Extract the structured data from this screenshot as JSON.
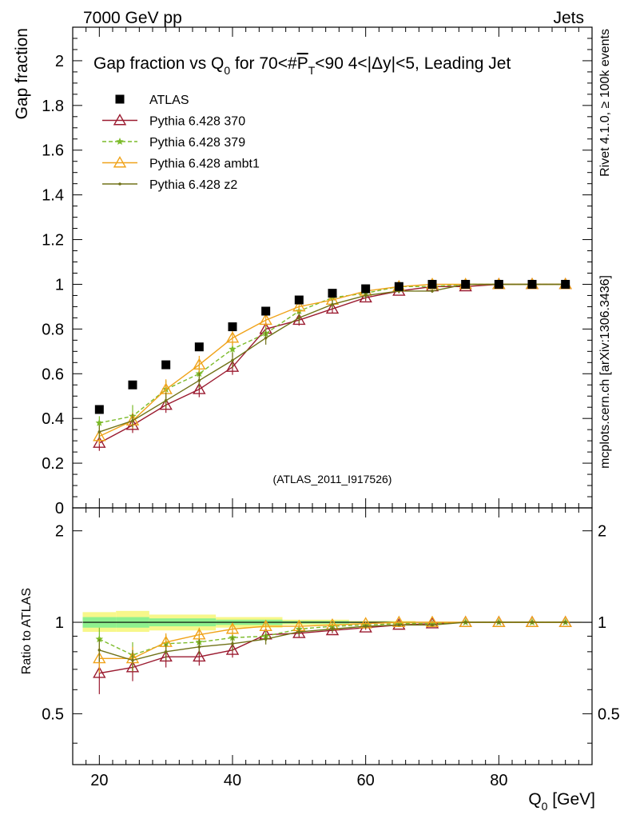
{
  "header": {
    "left_label": "7000 GeV pp",
    "right_label": "Jets"
  },
  "side_labels": {
    "rivet": "Rivet 4.1.0, ≥ 100k events",
    "source": "mcplots.cern.ch [arXiv:1306.3436]"
  },
  "colors": {
    "data": "#000000",
    "p370": "#9b1b30",
    "p379": "#7cbb2a",
    "ambt1": "#f0a31a",
    "z2": "#707218",
    "band_inner": "#8ef08e",
    "band_outer": "#f7f78a",
    "watermark": "#999999",
    "side_text": "#808080"
  },
  "chart_data": [
    {
      "type": "line",
      "panel": "main",
      "title_prefix": "Gap fraction vs Q",
      "title_sub": "0",
      "title_mid": " for 70<#",
      "title_overline": "P",
      "title_overline_sub": "T",
      "title_suffix": "<90  4<|Δy|<5, Leading Jet",
      "ylabel": "Gap fraction",
      "xlim": [
        16,
        94
      ],
      "ylim": [
        0,
        2.15
      ],
      "yticks": [
        0,
        0.2,
        0.4,
        0.6,
        0.8,
        1,
        1.2,
        1.4,
        1.6,
        1.8,
        2
      ],
      "ytick_labels": [
        "0",
        "0.2",
        "0.4",
        "0.6",
        "0.8",
        "1",
        "1.2",
        "1.4",
        "1.6",
        "1.8",
        "2"
      ],
      "watermark": "(ATLAS_2011_I917526)",
      "x": [
        20,
        25,
        30,
        35,
        40,
        45,
        50,
        55,
        60,
        65,
        70,
        75,
        80,
        85,
        90
      ],
      "series": [
        {
          "name": "ATLAS",
          "key": "data",
          "marker": "square",
          "line": "none",
          "values": [
            0.44,
            0.55,
            0.64,
            0.72,
            0.81,
            0.88,
            0.93,
            0.96,
            0.98,
            0.99,
            1.0,
            1.0,
            1.0,
            1.0,
            1.0
          ]
        },
        {
          "name": "Pythia 6.428 370",
          "key": "p370",
          "marker": "open-triangle",
          "line": "solid",
          "values": [
            0.29,
            0.37,
            0.46,
            0.53,
            0.63,
            0.8,
            0.84,
            0.89,
            0.94,
            0.97,
            0.99,
            0.99,
            1.0,
            1.0,
            1.0
          ],
          "errors": [
            0.035,
            0.035,
            0.035,
            0.035,
            0.035,
            0.03,
            0.025,
            0.02,
            0.015,
            0.01,
            0.008,
            0.005,
            0.003,
            0.002,
            0.002
          ]
        },
        {
          "name": "Pythia 6.428 379",
          "key": "p379",
          "marker": "star",
          "line": "dashed",
          "values": [
            0.38,
            0.41,
            0.53,
            0.6,
            0.71,
            0.78,
            0.88,
            0.94,
            0.96,
            0.99,
            0.99,
            1.0,
            1.0,
            1.0,
            1.0
          ],
          "errors": [
            0.03,
            0.05,
            0.04,
            0.04,
            0.035,
            0.03,
            0.025,
            0.02,
            0.015,
            0.01,
            0.008,
            0.005,
            0.003,
            0.002,
            0.002
          ]
        },
        {
          "name": "Pythia 6.428 ambt1",
          "key": "ambt1",
          "marker": "open-triangle",
          "line": "solid",
          "values": [
            0.32,
            0.39,
            0.53,
            0.64,
            0.76,
            0.84,
            0.9,
            0.93,
            0.97,
            0.99,
            1.0,
            1.0,
            1.0,
            1.0,
            1.0
          ],
          "errors": [
            0.035,
            0.035,
            0.045,
            0.04,
            0.035,
            0.03,
            0.025,
            0.02,
            0.015,
            0.01,
            0.008,
            0.005,
            0.003,
            0.002,
            0.002
          ]
        },
        {
          "name": "Pythia 6.428 z2",
          "key": "z2",
          "marker": "dot",
          "line": "solid",
          "values": [
            0.34,
            0.39,
            0.48,
            0.57,
            0.66,
            0.76,
            0.85,
            0.91,
            0.95,
            0.97,
            0.97,
            1.0,
            1.0,
            1.0,
            1.0
          ],
          "errors": [
            0.03,
            0.03,
            0.035,
            0.035,
            0.035,
            0.03,
            0.025,
            0.02,
            0.015,
            0.01,
            0.008,
            0.005,
            0.003,
            0.002,
            0.002
          ]
        }
      ]
    },
    {
      "type": "line",
      "panel": "ratio",
      "ylabel": "Ratio to ATLAS",
      "xlabel_prefix": "Q",
      "xlabel_sub": "0",
      "xlabel_suffix": " [GeV]",
      "xlim": [
        16,
        94
      ],
      "ylim": [
        0.34,
        2.38
      ],
      "yticks": [
        0.5,
        1,
        2
      ],
      "ytick_labels": [
        "0.5",
        "1",
        "2"
      ],
      "xticks": [
        20,
        40,
        60,
        80
      ],
      "xtick_labels": [
        "20",
        "40",
        "60",
        "80"
      ],
      "x": [
        20,
        25,
        30,
        35,
        40,
        45,
        50,
        55,
        60,
        65,
        70,
        75,
        80,
        85,
        90
      ],
      "bands": [
        {
          "x0": 17.5,
          "x1": 22.5,
          "inner": [
            0.96,
            1.04
          ],
          "outer": [
            0.93,
            1.08
          ]
        },
        {
          "x0": 22.5,
          "x1": 27.5,
          "inner": [
            0.96,
            1.04
          ],
          "outer": [
            0.93,
            1.09
          ]
        },
        {
          "x0": 27.5,
          "x1": 37.5,
          "inner": [
            0.97,
            1.03
          ],
          "outer": [
            0.94,
            1.06
          ]
        },
        {
          "x0": 37.5,
          "x1": 47.5,
          "inner": [
            0.98,
            1.02
          ],
          "outer": [
            0.96,
            1.04
          ]
        },
        {
          "x0": 47.5,
          "x1": 57.5,
          "inner": [
            0.99,
            1.01
          ],
          "outer": [
            0.98,
            1.02
          ]
        },
        {
          "x0": 57.5,
          "x1": 67.5,
          "inner": [
            0.995,
            1.005
          ],
          "outer": [
            0.99,
            1.01
          ]
        },
        {
          "x0": 67.5,
          "x1": 92.5,
          "inner": [
            0.998,
            1.002
          ],
          "outer": [
            0.996,
            1.004
          ]
        }
      ],
      "series": [
        {
          "name": "Pythia 6.428 370",
          "key": "p370",
          "marker": "open-triangle",
          "line": "solid",
          "values": [
            0.68,
            0.71,
            0.77,
            0.77,
            0.81,
            0.91,
            0.92,
            0.94,
            0.96,
            0.98,
            0.99,
            1.0,
            1.0,
            1.0,
            1.0
          ],
          "errors": [
            0.1,
            0.07,
            0.06,
            0.05,
            0.045,
            0.035,
            0.027,
            0.02,
            0.015,
            0.01,
            0.008,
            0.005,
            0.003,
            0.002,
            0.002
          ]
        },
        {
          "name": "Pythia 6.428 379",
          "key": "p379",
          "marker": "star",
          "line": "dashed",
          "values": [
            0.88,
            0.78,
            0.85,
            0.86,
            0.89,
            0.9,
            0.95,
            0.97,
            0.98,
            0.99,
            0.99,
            1.0,
            1.0,
            1.0,
            1.0
          ],
          "errors": [
            0.08,
            0.08,
            0.06,
            0.05,
            0.045,
            0.035,
            0.027,
            0.02,
            0.015,
            0.01,
            0.008,
            0.005,
            0.003,
            0.002,
            0.002
          ]
        },
        {
          "name": "Pythia 6.428 ambt1",
          "key": "ambt1",
          "marker": "open-triangle",
          "line": "solid",
          "values": [
            0.76,
            0.76,
            0.86,
            0.91,
            0.95,
            0.97,
            0.97,
            0.98,
            0.99,
            1.0,
            1.0,
            1.0,
            1.0,
            1.0,
            1.0
          ],
          "errors": [
            0.08,
            0.07,
            0.06,
            0.05,
            0.045,
            0.035,
            0.027,
            0.02,
            0.015,
            0.01,
            0.008,
            0.005,
            0.003,
            0.002,
            0.002
          ]
        },
        {
          "name": "Pythia 6.428 z2",
          "key": "z2",
          "marker": "dot",
          "line": "solid",
          "values": [
            0.81,
            0.75,
            0.8,
            0.83,
            0.85,
            0.88,
            0.93,
            0.95,
            0.97,
            0.98,
            0.98,
            1.0,
            1.0,
            1.0,
            1.0
          ],
          "errors": [
            0.07,
            0.06,
            0.05,
            0.05,
            0.045,
            0.035,
            0.027,
            0.02,
            0.015,
            0.01,
            0.008,
            0.005,
            0.003,
            0.002,
            0.002
          ]
        }
      ]
    }
  ]
}
